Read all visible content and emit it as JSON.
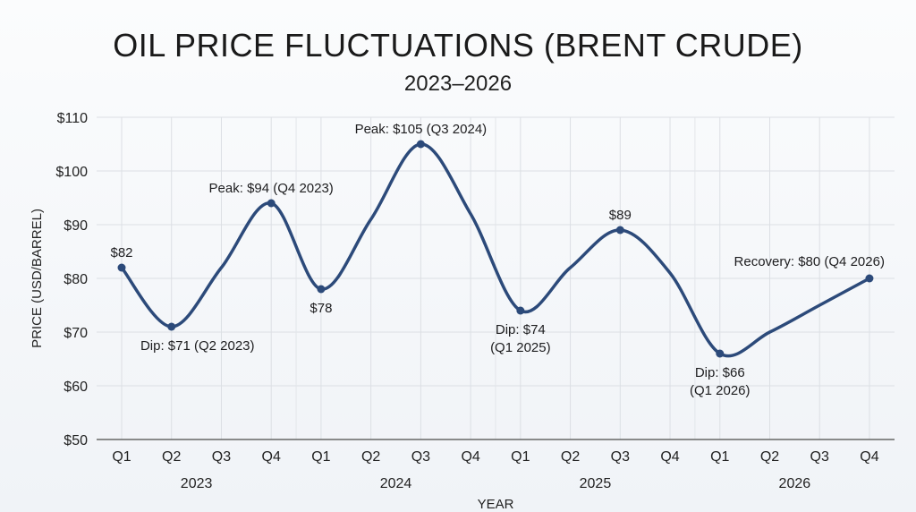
{
  "chart_data": {
    "type": "line",
    "title": "OIL PRICE FLUCTUATIONS (BRENT CRUDE)",
    "subtitle": "2023–2026",
    "xlabel": "YEAR",
    "ylabel": "PRICE (USD/BARREL)",
    "ylim": [
      50,
      110
    ],
    "yticks": [
      "$50",
      "$60",
      "$70",
      "$80",
      "$90",
      "$100",
      "$110"
    ],
    "ytick_values": [
      50,
      60,
      70,
      80,
      90,
      100,
      110
    ],
    "grid": true,
    "quarters": [
      "Q1",
      "Q2",
      "Q3",
      "Q4",
      "Q1",
      "Q2",
      "Q3",
      "Q4",
      "Q1",
      "Q2",
      "Q3",
      "Q4",
      "Q1",
      "Q2",
      "Q3",
      "Q4"
    ],
    "years": [
      "2023",
      "2024",
      "2025",
      "2026"
    ],
    "values": [
      82,
      71,
      82,
      94,
      78,
      91,
      105,
      92,
      74,
      82,
      89,
      81,
      66,
      70,
      75,
      80
    ],
    "markers": [
      0,
      1,
      3,
      4,
      6,
      8,
      10,
      12,
      15
    ],
    "line_color": "#2c4a7a",
    "annotations": [
      {
        "index": 0,
        "lines": [
          "$82"
        ],
        "pos": "above"
      },
      {
        "index": 1,
        "lines": [
          "Dip: $71 (Q2 2023)"
        ],
        "pos": "below"
      },
      {
        "index": 3,
        "lines": [
          "Peak: $94 (Q4 2023)"
        ],
        "pos": "above"
      },
      {
        "index": 4,
        "lines": [
          "$78"
        ],
        "pos": "below"
      },
      {
        "index": 6,
        "lines": [
          "Peak: $105 (Q3 2024)"
        ],
        "pos": "above"
      },
      {
        "index": 8,
        "lines": [
          "Dip: $74",
          "(Q1 2025)"
        ],
        "pos": "below"
      },
      {
        "index": 10,
        "lines": [
          "$89"
        ],
        "pos": "above"
      },
      {
        "index": 12,
        "lines": [
          "Dip: $66",
          "(Q1 2026)"
        ],
        "pos": "below"
      },
      {
        "index": 15,
        "lines": [
          "Recovery: $80 (Q4 2026)"
        ],
        "pos": "above-left"
      }
    ]
  }
}
